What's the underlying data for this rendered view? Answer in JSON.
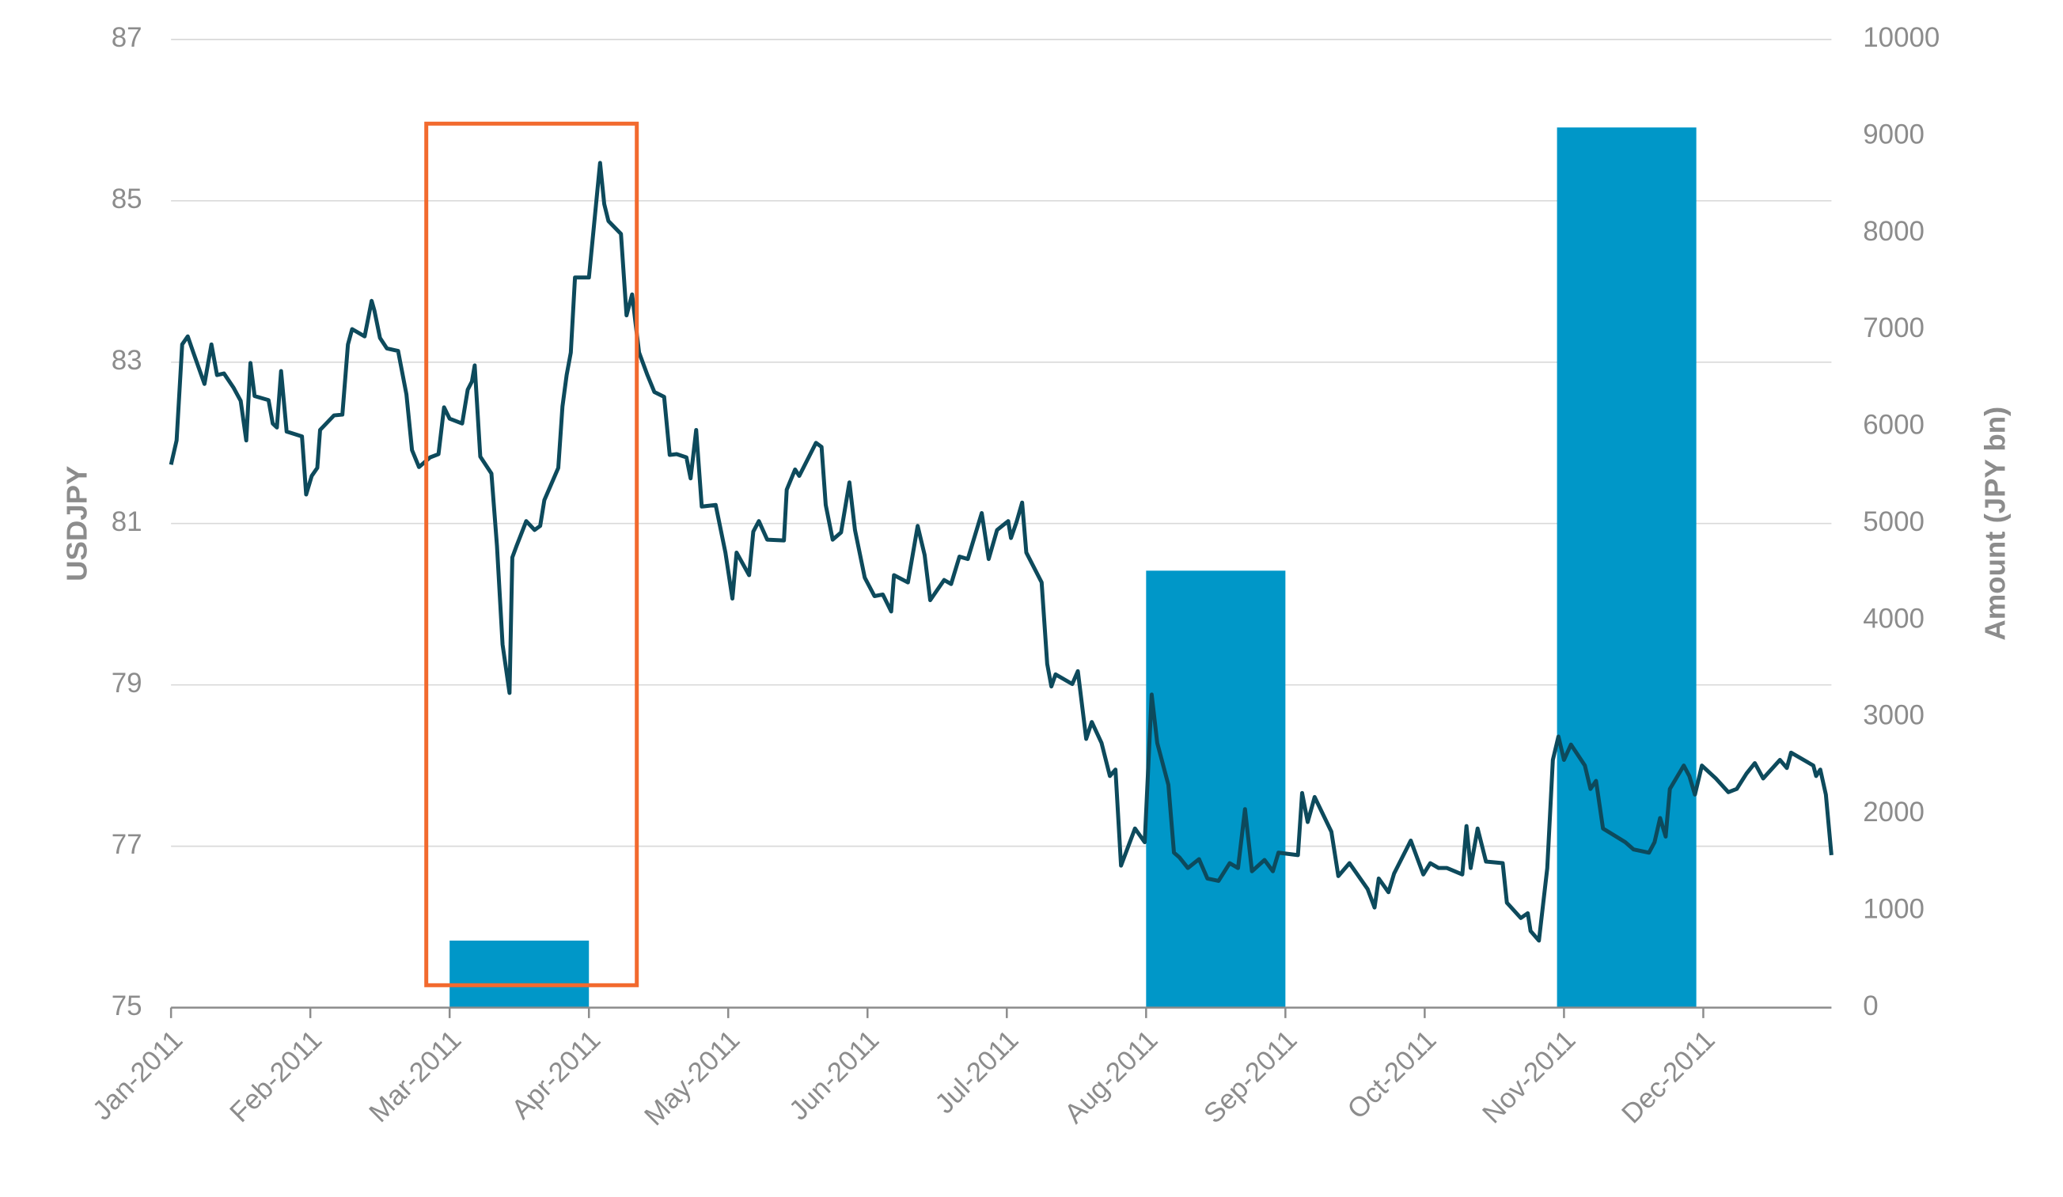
{
  "chart_data": {
    "type": "combo",
    "y_label": "USDJPY",
    "y2_label": "Amount (JPY bn)",
    "xlim": [
      0,
      11.92
    ],
    "xticks": [
      {
        "value": 0,
        "label": "Jan-2011"
      },
      {
        "value": 1,
        "label": "Feb-2011"
      },
      {
        "value": 2,
        "label": "Mar-2011"
      },
      {
        "value": 3,
        "label": "Apr-2011"
      },
      {
        "value": 4,
        "label": "May-2011"
      },
      {
        "value": 5,
        "label": "Jun-2011"
      },
      {
        "value": 6,
        "label": "Jul-2011"
      },
      {
        "value": 7,
        "label": "Aug-2011"
      },
      {
        "value": 8,
        "label": "Sep-2011"
      },
      {
        "value": 9,
        "label": "Oct-2011"
      },
      {
        "value": 10,
        "label": "Nov-2011"
      },
      {
        "value": 11,
        "label": "Dec-2011"
      }
    ],
    "ylim": [
      75,
      87
    ],
    "yticks": [
      75,
      77,
      79,
      81,
      83,
      85,
      87
    ],
    "y2lim": [
      0,
      10000
    ],
    "y2ticks": [
      0,
      1000,
      2000,
      3000,
      4000,
      5000,
      6000,
      7000,
      8000,
      9000,
      10000
    ],
    "grid": true,
    "series": [
      {
        "type": "bar",
        "axis": "y2",
        "color": "#0097c8",
        "x": [
          2,
          7,
          9.95
        ],
        "values": [
          692,
          4513,
          9091
        ]
      },
      {
        "type": "line",
        "color": "#0d4a5c",
        "x": [
          0,
          0.04,
          0.08,
          0.12,
          0.16,
          0.24,
          0.29,
          0.33,
          0.38,
          0.45,
          0.5,
          0.54,
          0.57,
          0.6,
          0.7,
          0.73,
          0.76,
          0.79,
          0.83,
          0.94,
          0.97,
          1.01,
          1.05,
          1.07,
          1.17,
          1.23,
          1.27,
          1.3,
          1.39,
          1.44,
          1.46,
          1.5,
          1.55,
          1.63,
          1.69,
          1.73,
          1.78,
          1.86,
          1.92,
          1.96,
          2,
          2.09,
          2.13,
          2.16,
          2.18,
          2.22,
          2.3,
          2.34,
          2.38,
          2.43,
          2.45,
          2.48,
          2.55,
          2.61,
          2.65,
          2.68,
          2.78,
          2.81,
          2.84,
          2.87,
          2.9,
          3,
          3.08,
          3.11,
          3.14,
          3.23,
          3.27,
          3.31,
          3.36,
          3.42,
          3.47,
          3.54,
          3.58,
          3.63,
          3.7,
          3.73,
          3.77,
          3.81,
          3.91,
          3.98,
          4.03,
          4.06,
          4.15,
          4.18,
          4.22,
          4.28,
          4.4,
          4.42,
          4.48,
          4.51,
          4.63,
          4.67,
          4.7,
          4.75,
          4.81,
          4.87,
          4.91,
          4.98,
          5.05,
          5.11,
          5.17,
          5.19,
          5.29,
          5.36,
          5.41,
          5.45,
          5.55,
          5.6,
          5.66,
          5.72,
          5.82,
          5.87,
          5.93,
          6.01,
          6.03,
          6.07,
          6.11,
          6.14,
          6.25,
          6.29,
          6.32,
          6.35,
          6.47,
          6.51,
          6.57,
          6.61,
          6.68,
          6.74,
          6.78,
          6.82,
          6.92,
          6.99,
          7.04,
          7.08,
          7.16,
          7.2,
          7.24,
          7.3,
          7.38,
          7.44,
          7.52,
          7.6,
          7.66,
          7.71,
          7.76,
          7.85,
          7.91,
          7.95,
          8.09,
          8.12,
          8.16,
          8.21,
          8.33,
          8.38,
          8.46,
          8.59,
          8.64,
          8.67,
          8.74,
          8.78,
          8.9,
          8.99,
          9.04,
          9.1,
          9.16,
          9.27,
          9.3,
          9.33,
          9.38,
          9.44,
          9.56,
          9.59,
          9.69,
          9.74,
          9.76,
          9.82,
          9.88,
          9.92,
          9.96,
          10,
          10.05,
          10.15,
          10.19,
          10.23,
          10.28,
          10.44,
          10.5,
          10.61,
          10.65,
          10.69,
          10.73,
          10.76,
          10.86,
          10.9,
          10.94,
          10.99,
          11.09,
          11.18,
          11.24,
          11.31,
          11.37,
          11.43,
          11.55,
          11.6,
          11.63,
          11.79,
          11.81,
          11.84,
          11.88,
          11.92
        ],
        "values": [
          81.73,
          82.03,
          83.22,
          83.32,
          83.12,
          82.73,
          83.22,
          82.84,
          82.86,
          82.68,
          82.52,
          82.03,
          82.99,
          82.58,
          82.53,
          82.24,
          82.19,
          82.89,
          82.14,
          82.08,
          81.36,
          81.59,
          81.69,
          82.16,
          82.34,
          82.35,
          83.22,
          83.41,
          83.32,
          83.76,
          83.64,
          83.3,
          83.17,
          83.14,
          82.6,
          81.91,
          81.7,
          81.82,
          81.86,
          82.44,
          82.3,
          82.24,
          82.66,
          82.76,
          82.96,
          81.83,
          81.62,
          80.72,
          79.5,
          78.9,
          80.58,
          80.72,
          81.03,
          80.92,
          80.97,
          81.29,
          81.69,
          82.45,
          82.84,
          83.12,
          84.05,
          84.05,
          85.47,
          84.96,
          84.75,
          84.59,
          83.58,
          83.84,
          83.12,
          82.84,
          82.63,
          82.57,
          81.85,
          81.86,
          81.82,
          81.56,
          82.16,
          81.21,
          81.23,
          80.64,
          80.07,
          80.64,
          80.36,
          80.9,
          81.03,
          80.8,
          80.79,
          81.42,
          81.67,
          81.59,
          82,
          81.95,
          81.23,
          80.8,
          80.89,
          81.51,
          80.92,
          80.33,
          80.1,
          80.12,
          79.91,
          80.36,
          80.27,
          80.97,
          80.61,
          80.05,
          80.3,
          80.25,
          80.59,
          80.56,
          81.13,
          80.56,
          80.92,
          81.03,
          80.82,
          81.02,
          81.26,
          80.64,
          80.27,
          79.26,
          78.98,
          79.13,
          79.01,
          79.17,
          78.33,
          78.54,
          78.28,
          77.87,
          77.95,
          76.76,
          77.22,
          77.05,
          78.88,
          78.28,
          77.76,
          76.92,
          76.86,
          76.73,
          76.84,
          76.6,
          76.57,
          76.79,
          76.73,
          77.46,
          76.69,
          76.83,
          76.69,
          76.92,
          76.89,
          77.66,
          77.3,
          77.61,
          77.18,
          76.63,
          76.79,
          76.47,
          76.24,
          76.6,
          76.43,
          76.66,
          77.07,
          76.65,
          76.79,
          76.73,
          76.73,
          76.65,
          77.25,
          76.73,
          77.22,
          76.81,
          76.79,
          76.3,
          76.11,
          76.17,
          75.95,
          75.83,
          76.73,
          78.07,
          78.36,
          78.07,
          78.26,
          78,
          77.71,
          77.81,
          77.22,
          77.05,
          76.96,
          76.92,
          77.05,
          77.35,
          77.12,
          77.71,
          78,
          77.87,
          77.64,
          78,
          77.84,
          77.67,
          77.71,
          77.9,
          78.03,
          77.84,
          78.07,
          77.97,
          78.16,
          78,
          77.87,
          77.95,
          77.64,
          76.89
        ]
      }
    ]
  }
}
